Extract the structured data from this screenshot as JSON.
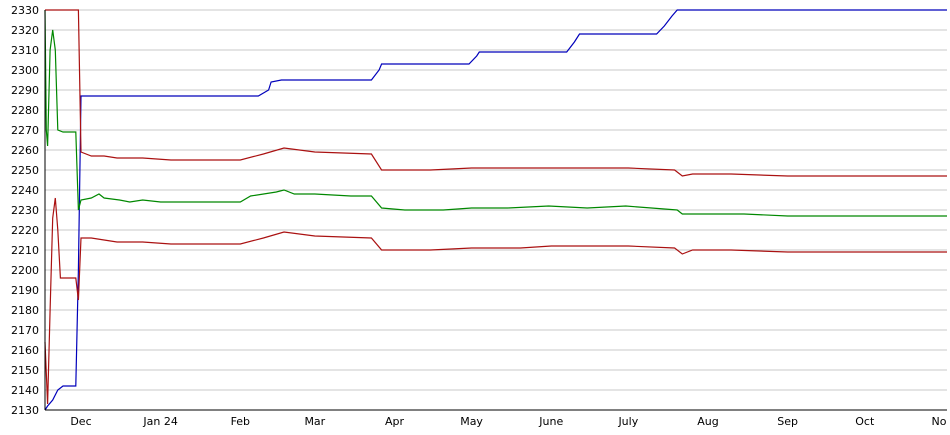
{
  "chart_data": {
    "type": "line",
    "ylim": [
      2130,
      2330
    ],
    "yticks": [
      2130,
      2140,
      2150,
      2160,
      2170,
      2180,
      2190,
      2200,
      2210,
      2220,
      2230,
      2240,
      2250,
      2260,
      2270,
      2280,
      2290,
      2300,
      2310,
      2320,
      2330
    ],
    "xticks": [
      {
        "label": "Dec",
        "x": "2023-12-01"
      },
      {
        "label": "Jan 24",
        "x": "2024-01-01"
      },
      {
        "label": "Feb",
        "x": "2024-02-01"
      },
      {
        "label": "Mar",
        "x": "2024-03-01"
      },
      {
        "label": "Apr",
        "x": "2024-04-01"
      },
      {
        "label": "May",
        "x": "2024-05-01"
      },
      {
        "label": "June",
        "x": "2024-06-01"
      },
      {
        "label": "July",
        "x": "2024-07-01"
      },
      {
        "label": "Aug",
        "x": "2024-08-01"
      },
      {
        "label": "Sep",
        "x": "2024-09-01"
      },
      {
        "label": "Oct",
        "x": "2024-10-01"
      },
      {
        "label": "No",
        "x": "2024-11-01"
      }
    ],
    "xlim": [
      "2023-11-17",
      "2024-11-02"
    ],
    "grid": true,
    "series": [
      {
        "color": "#0000bb",
        "x": [
          "2023-11-17",
          "2023-11-18",
          "2023-11-20",
          "2023-11-22",
          "2023-11-24",
          "2023-11-29",
          "2023-11-30",
          "2023-12-01",
          "2023-12-02",
          "2024-02-08",
          "2024-02-12",
          "2024-02-13",
          "2024-02-17",
          "2024-03-23",
          "2024-03-26",
          "2024-03-27",
          "2024-04-30",
          "2024-05-03",
          "2024-05-04",
          "2024-06-07",
          "2024-06-10",
          "2024-06-12",
          "2024-07-12",
          "2024-07-15",
          "2024-07-18",
          "2024-07-20",
          "2024-11-02"
        ],
        "values": [
          2130,
          2132,
          2135,
          2140,
          2142,
          2142,
          2200,
          2287,
          2287,
          2287,
          2290,
          2294,
          2295,
          2295,
          2300,
          2303,
          2303,
          2307,
          2309,
          2309,
          2314,
          2318,
          2318,
          2322,
          2327,
          2330,
          2330
        ]
      },
      {
        "color": "#008800",
        "x": [
          "2023-11-17",
          "2023-11-17.5",
          "2023-11-18",
          "2023-11-19",
          "2023-11-20",
          "2023-11-21",
          "2023-11-22",
          "2023-11-24",
          "2023-11-29",
          "2023-11-30",
          "2023-12-01",
          "2023-12-05",
          "2023-12-08",
          "2023-12-10",
          "2023-12-16",
          "2023-12-20",
          "2023-12-25",
          "2024-01-01",
          "2024-01-08",
          "2024-02-01",
          "2024-02-05",
          "2024-02-15",
          "2024-02-18",
          "2024-02-22",
          "2024-03-01",
          "2024-03-15",
          "2024-03-23",
          "2024-03-27",
          "2024-04-05",
          "2024-04-20",
          "2024-05-01",
          "2024-05-15",
          "2024-05-31",
          "2024-06-15",
          "2024-06-30",
          "2024-07-10",
          "2024-07-20",
          "2024-07-22",
          "2024-07-26",
          "2024-08-01",
          "2024-08-15",
          "2024-09-01",
          "2024-09-15",
          "2024-10-01",
          "2024-10-05",
          "2024-10-20",
          "2024-11-02"
        ],
        "values": [
          2330,
          2270,
          2262,
          2310,
          2320,
          2310,
          2270,
          2269,
          2269,
          2230,
          2235,
          2236,
          2238,
          2236,
          2235,
          2234,
          2235,
          2234,
          2234,
          2234,
          2237,
          2239,
          2240,
          2238,
          2238,
          2237,
          2237,
          2231,
          2230,
          2230,
          2231,
          2231,
          2232,
          2231,
          2232,
          2231,
          2230,
          2228,
          2228,
          2228,
          2228,
          2227,
          2227,
          2227,
          2227,
          2227,
          2227
        ]
      },
      {
        "color": "#aa1111",
        "x": [
          "2023-11-17",
          "2023-11-30",
          "2023-12-01",
          "2023-12-05",
          "2023-12-10",
          "2023-12-15",
          "2023-12-25",
          "2024-01-05",
          "2024-02-01",
          "2024-02-10",
          "2024-02-18",
          "2024-03-01",
          "2024-03-23",
          "2024-03-27",
          "2024-04-15",
          "2024-05-01",
          "2024-05-20",
          "2024-06-01",
          "2024-06-20",
          "2024-07-01",
          "2024-07-19",
          "2024-07-22",
          "2024-07-26",
          "2024-08-10",
          "2024-09-01",
          "2024-10-01",
          "2024-10-15",
          "2024-11-02"
        ],
        "values": [
          2330,
          2330,
          2259,
          2257,
          2257,
          2256,
          2256,
          2255,
          2255,
          2258,
          2261,
          2259,
          2258,
          2250,
          2250,
          2251,
          2251,
          2251,
          2251,
          2251,
          2250,
          2247,
          2248,
          2248,
          2247,
          2247,
          2247,
          2247
        ]
      },
      {
        "color": "#aa1111",
        "x": [
          "2023-11-17",
          "2023-11-18",
          "2023-11-19",
          "2023-11-20",
          "2023-11-21",
          "2023-11-22",
          "2023-11-23",
          "2023-11-29",
          "2023-11-30",
          "2023-12-01",
          "2023-12-05",
          "2023-12-10",
          "2023-12-15",
          "2023-12-25",
          "2024-01-05",
          "2024-02-01",
          "2024-02-10",
          "2024-02-18",
          "2024-03-01",
          "2024-03-23",
          "2024-03-27",
          "2024-04-15",
          "2024-05-01",
          "2024-05-20",
          "2024-06-01",
          "2024-06-20",
          "2024-07-01",
          "2024-07-19",
          "2024-07-22",
          "2024-07-26",
          "2024-08-10",
          "2024-09-01",
          "2024-10-01",
          "2024-10-15",
          "2024-11-02"
        ],
        "values": [
          2164,
          2133,
          2180,
          2226,
          2236,
          2220,
          2196,
          2196,
          2185,
          2216,
          2216,
          2215,
          2214,
          2214,
          2213,
          2213,
          2216,
          2219,
          2217,
          2216,
          2210,
          2210,
          2211,
          2211,
          2212,
          2212,
          2212,
          2211,
          2208,
          2210,
          2210,
          2209,
          2209,
          2209,
          2209
        ]
      }
    ]
  }
}
